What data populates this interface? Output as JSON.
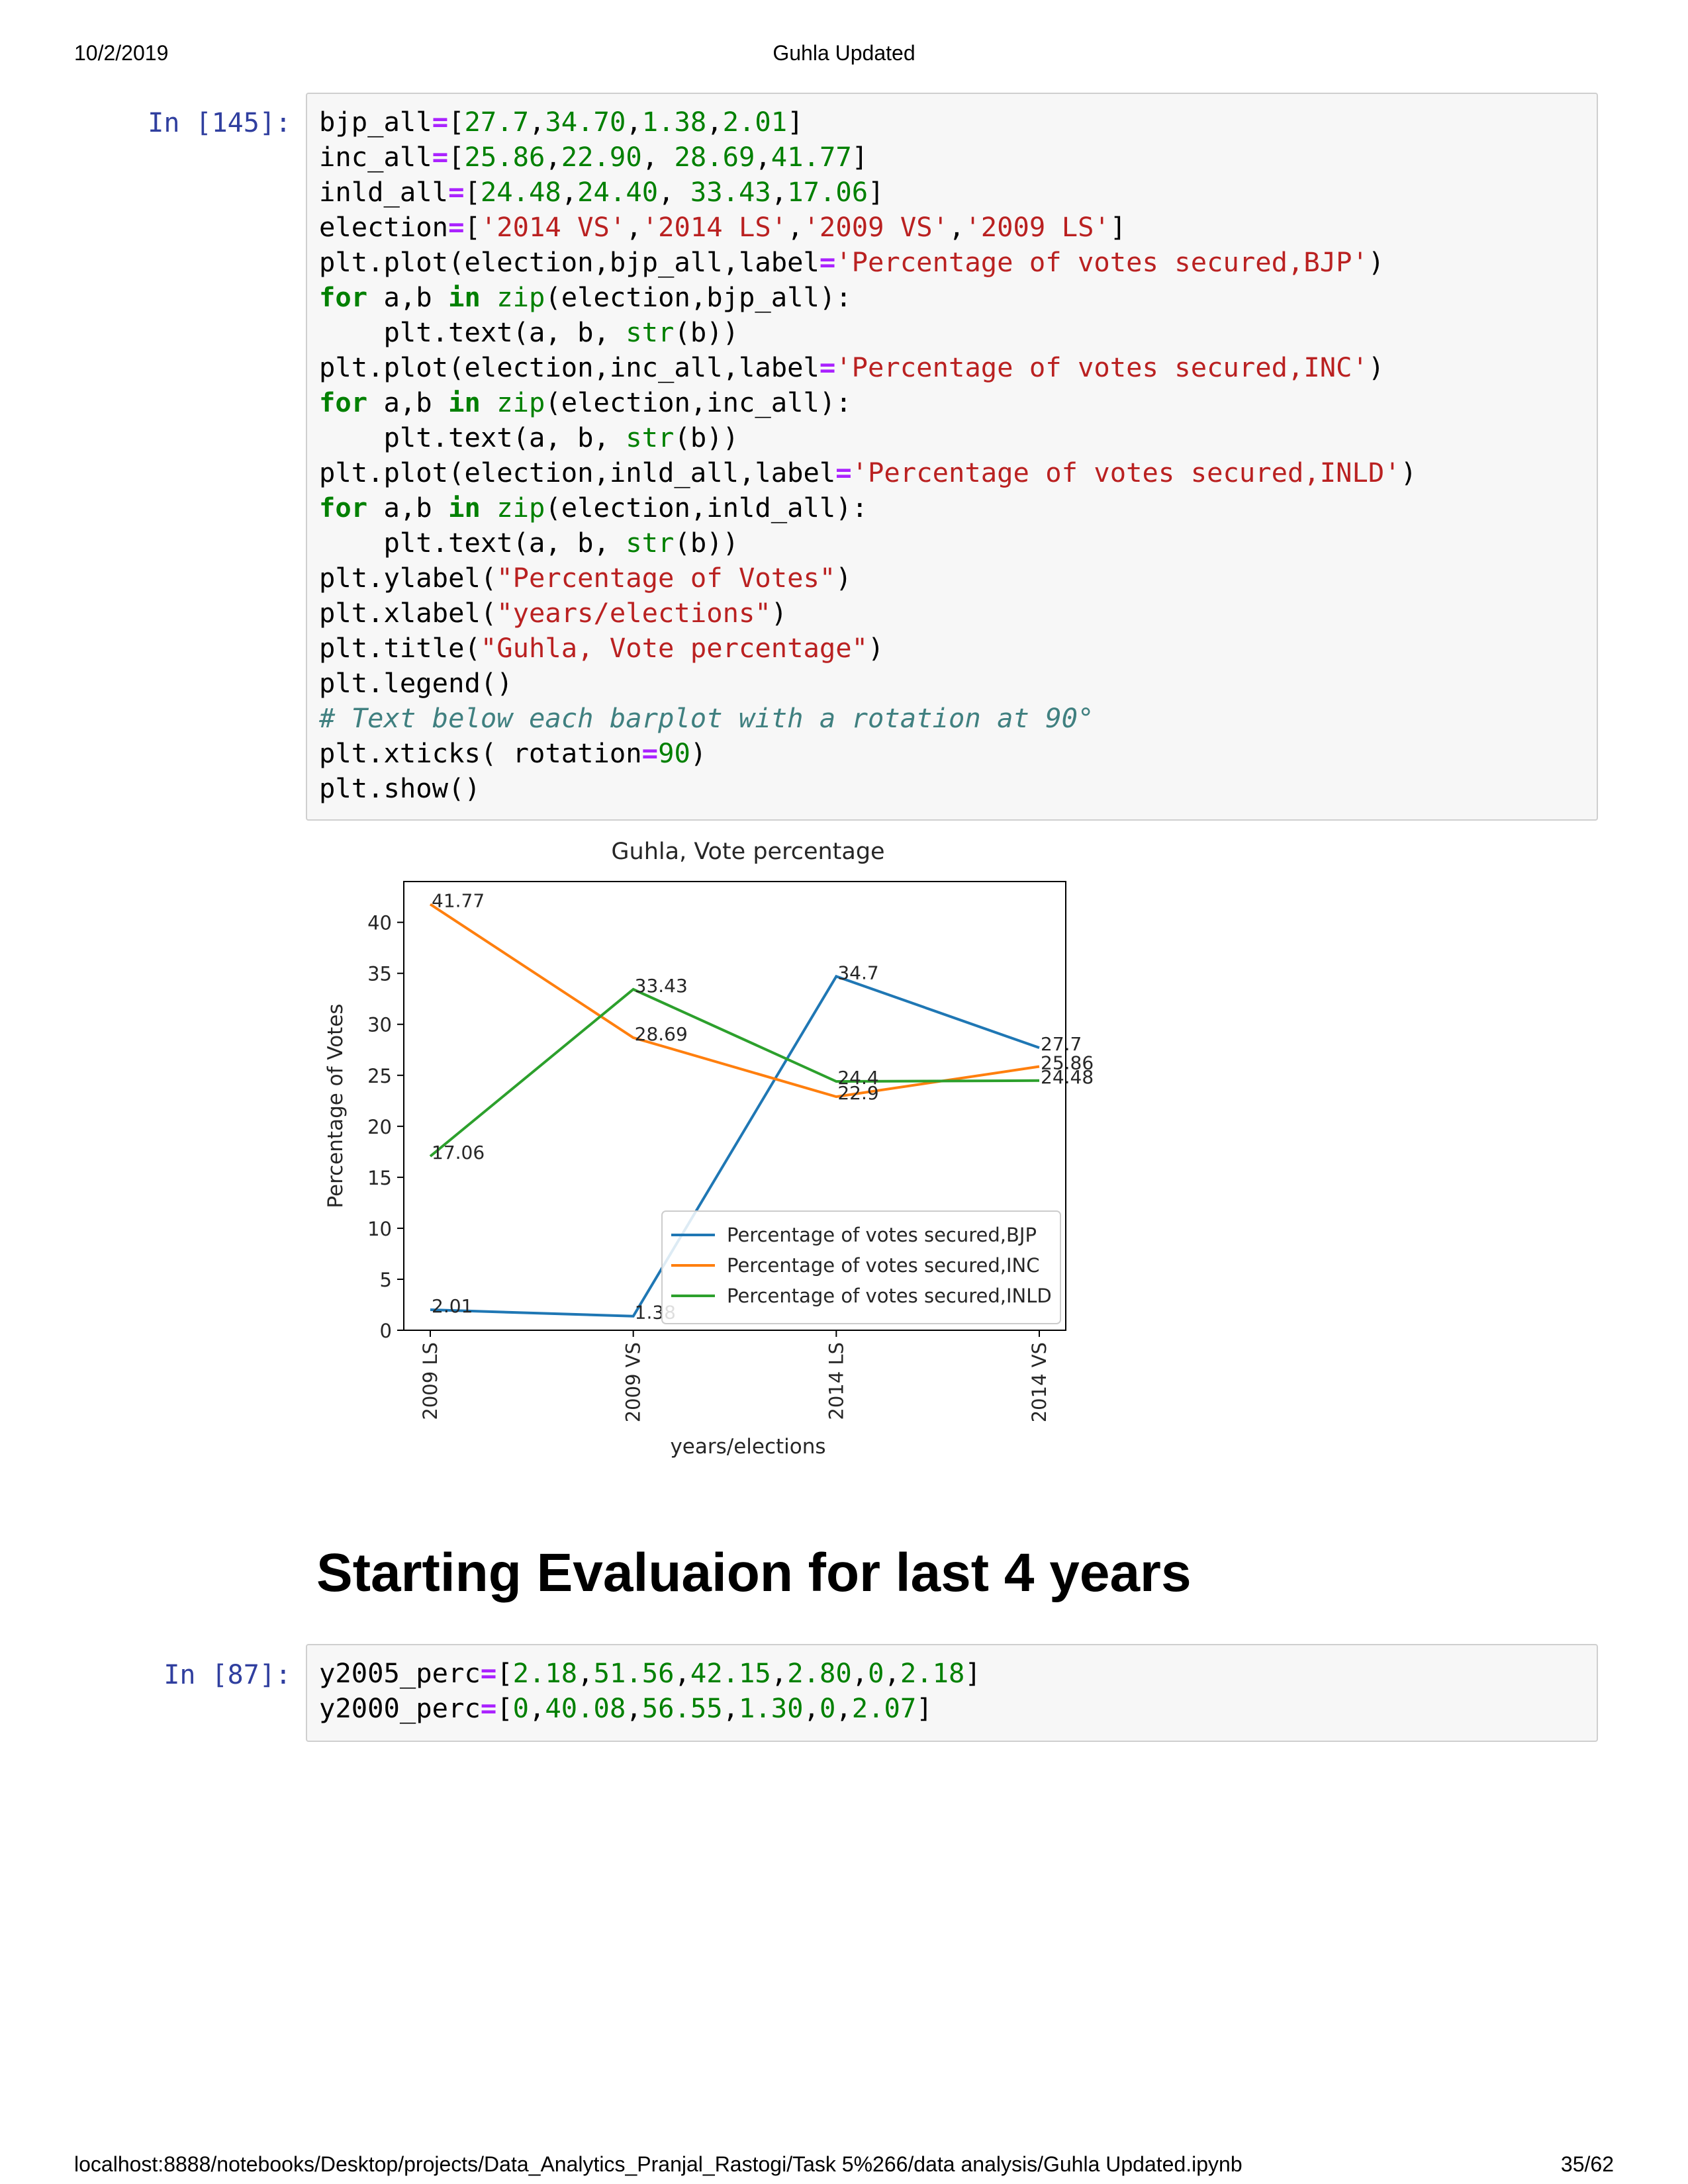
{
  "page_header": {
    "date": "10/2/2019",
    "title": "Guhla Updated"
  },
  "page_footer": {
    "url": "localhost:8888/notebooks/Desktop/projects/Data_Analytics_Pranjal_Rastogi/Task 5%266/data analysis/Guhla Updated.ipynb",
    "page": "35/62"
  },
  "cells": {
    "cell_145": {
      "prompt": "In [145]:",
      "lines": [
        [
          [
            "bjp_all",
            "t"
          ],
          [
            "=",
            "op"
          ],
          [
            "[",
            "t"
          ],
          [
            "27.7",
            "num"
          ],
          [
            ",",
            "t"
          ],
          [
            "34.70",
            "num"
          ],
          [
            ",",
            "t"
          ],
          [
            "1.38",
            "num"
          ],
          [
            ",",
            "t"
          ],
          [
            "2.01",
            "num"
          ],
          [
            "]",
            "t"
          ]
        ],
        [
          [
            "inc_all",
            "t"
          ],
          [
            "=",
            "op"
          ],
          [
            "[",
            "t"
          ],
          [
            "25.86",
            "num"
          ],
          [
            ",",
            "t"
          ],
          [
            "22.90",
            "num"
          ],
          [
            ", ",
            "t"
          ],
          [
            "28.69",
            "num"
          ],
          [
            ",",
            "t"
          ],
          [
            "41.77",
            "num"
          ],
          [
            "]",
            "t"
          ]
        ],
        [
          [
            "inld_all",
            "t"
          ],
          [
            "=",
            "op"
          ],
          [
            "[",
            "t"
          ],
          [
            "24.48",
            "num"
          ],
          [
            ",",
            "t"
          ],
          [
            "24.40",
            "num"
          ],
          [
            ", ",
            "t"
          ],
          [
            "33.43",
            "num"
          ],
          [
            ",",
            "t"
          ],
          [
            "17.06",
            "num"
          ],
          [
            "]",
            "t"
          ]
        ],
        [
          [
            "election",
            "t"
          ],
          [
            "=",
            "op"
          ],
          [
            "[",
            "t"
          ],
          [
            "'2014 VS'",
            "str"
          ],
          [
            ",",
            "t"
          ],
          [
            "'2014 LS'",
            "str"
          ],
          [
            ",",
            "t"
          ],
          [
            "'2009 VS'",
            "str"
          ],
          [
            ",",
            "t"
          ],
          [
            "'2009 LS'",
            "str"
          ],
          [
            "]",
            "t"
          ]
        ],
        [
          [
            "plt.plot(election,bjp_all,label",
            "t"
          ],
          [
            "=",
            "op"
          ],
          [
            "'Percentage of votes secured,BJP'",
            "str"
          ],
          [
            ")",
            "t"
          ]
        ],
        [
          [
            "for",
            "kw"
          ],
          [
            " a,b ",
            "t"
          ],
          [
            "in",
            "kw"
          ],
          [
            " ",
            "t"
          ],
          [
            "zip",
            "bi"
          ],
          [
            "(election,bjp_all):",
            "t"
          ]
        ],
        [
          [
            "    plt.text(a, b, ",
            "t"
          ],
          [
            "str",
            "bi"
          ],
          [
            "(b))",
            "t"
          ]
        ],
        [
          [
            "plt.plot(election,inc_all,label",
            "t"
          ],
          [
            "=",
            "op"
          ],
          [
            "'Percentage of votes secured,INC'",
            "str"
          ],
          [
            ")",
            "t"
          ]
        ],
        [
          [
            "for",
            "kw"
          ],
          [
            " a,b ",
            "t"
          ],
          [
            "in",
            "kw"
          ],
          [
            " ",
            "t"
          ],
          [
            "zip",
            "bi"
          ],
          [
            "(election,inc_all):",
            "t"
          ]
        ],
        [
          [
            "    plt.text(a, b, ",
            "t"
          ],
          [
            "str",
            "bi"
          ],
          [
            "(b))",
            "t"
          ]
        ],
        [
          [
            "plt.plot(election,inld_all,label",
            "t"
          ],
          [
            "=",
            "op"
          ],
          [
            "'Percentage of votes secured,INLD'",
            "str"
          ],
          [
            ")",
            "t"
          ]
        ],
        [
          [
            "for",
            "kw"
          ],
          [
            " a,b ",
            "t"
          ],
          [
            "in",
            "kw"
          ],
          [
            " ",
            "t"
          ],
          [
            "zip",
            "bi"
          ],
          [
            "(election,inld_all):",
            "t"
          ]
        ],
        [
          [
            "    plt.text(a, b, ",
            "t"
          ],
          [
            "str",
            "bi"
          ],
          [
            "(b))",
            "t"
          ]
        ],
        [
          [
            "plt.ylabel(",
            "t"
          ],
          [
            "\"Percentage of Votes\"",
            "str"
          ],
          [
            ")",
            "t"
          ]
        ],
        [
          [
            "plt.xlabel(",
            "t"
          ],
          [
            "\"years/elections\"",
            "str"
          ],
          [
            ")",
            "t"
          ]
        ],
        [
          [
            "plt.title(",
            "t"
          ],
          [
            "\"Guhla, Vote percentage\"",
            "str"
          ],
          [
            ")",
            "t"
          ]
        ],
        [
          [
            "plt.legend()",
            "t"
          ]
        ],
        [
          [
            "# Text below each barplot with a rotation at 90°",
            "cm"
          ]
        ],
        [
          [
            "plt.xticks( rotation",
            "t"
          ],
          [
            "=",
            "op"
          ],
          [
            "90",
            "num"
          ],
          [
            ")",
            "t"
          ]
        ],
        [
          [
            "plt.show()",
            "t"
          ]
        ]
      ]
    },
    "cell_87": {
      "prompt": "In [87]:",
      "lines": [
        [
          [
            "y2005_perc",
            "t"
          ],
          [
            "=",
            "op"
          ],
          [
            "[",
            "t"
          ],
          [
            "2.18",
            "num"
          ],
          [
            ",",
            "t"
          ],
          [
            "51.56",
            "num"
          ],
          [
            ",",
            "t"
          ],
          [
            "42.15",
            "num"
          ],
          [
            ",",
            "t"
          ],
          [
            "2.80",
            "num"
          ],
          [
            ",",
            "t"
          ],
          [
            "0",
            "num"
          ],
          [
            ",",
            "t"
          ],
          [
            "2.18",
            "num"
          ],
          [
            "]",
            "t"
          ]
        ],
        [
          [
            "y2000_perc",
            "t"
          ],
          [
            "=",
            "op"
          ],
          [
            "[",
            "t"
          ],
          [
            "0",
            "num"
          ],
          [
            ",",
            "t"
          ],
          [
            "40.08",
            "num"
          ],
          [
            ",",
            "t"
          ],
          [
            "56.55",
            "num"
          ],
          [
            ",",
            "t"
          ],
          [
            "1.30",
            "num"
          ],
          [
            ",",
            "t"
          ],
          [
            "0",
            "num"
          ],
          [
            ",",
            "t"
          ],
          [
            "2.07",
            "num"
          ],
          [
            "]",
            "t"
          ]
        ]
      ]
    }
  },
  "markdown": {
    "heading": "Starting Evaluaion for last 4 years"
  },
  "chart_data": {
    "type": "line",
    "title": "Guhla, Vote percentage",
    "xlabel": "years/elections",
    "ylabel": "Percentage of Votes",
    "categories": [
      "2009 LS",
      "2009 VS",
      "2014 LS",
      "2014 VS"
    ],
    "ylim": [
      0,
      44
    ],
    "yticks": [
      0,
      5,
      10,
      15,
      20,
      25,
      30,
      35,
      40
    ],
    "legend_position": "lower right",
    "grid": false,
    "series": [
      {
        "name": "Percentage of votes secured,BJP",
        "color": "#1f77b4",
        "values": [
          2.01,
          1.38,
          34.7,
          27.7
        ],
        "labels": [
          "2.01",
          "1.38",
          "34.7",
          "27.7"
        ]
      },
      {
        "name": "Percentage of votes secured,INC",
        "color": "#ff7f0e",
        "values": [
          41.77,
          28.69,
          22.9,
          25.86
        ],
        "labels": [
          "41.77",
          "28.69",
          "22.9",
          "25.86"
        ]
      },
      {
        "name": "Percentage of votes secured,INLD",
        "color": "#2ca02c",
        "values": [
          17.06,
          33.43,
          24.4,
          24.48
        ],
        "labels": [
          "17.06",
          "33.43",
          "24.4",
          "24.48"
        ]
      }
    ]
  }
}
